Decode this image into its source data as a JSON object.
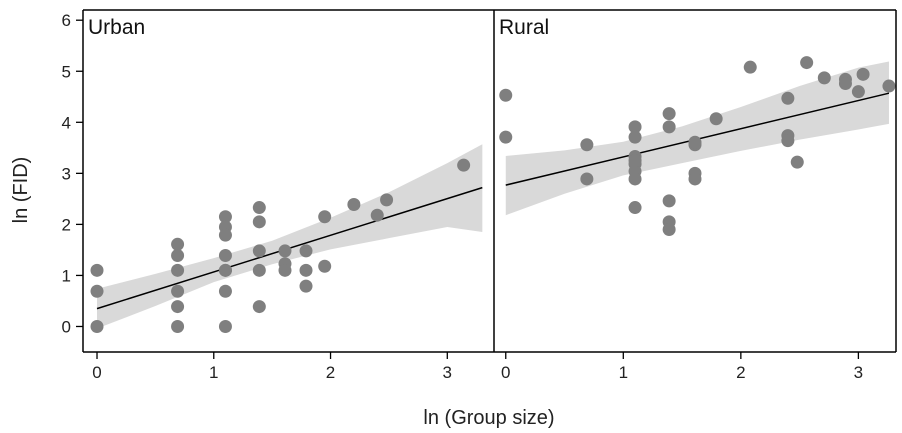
{
  "chart_data": {
    "type": "scatter",
    "xlabel": "ln (Group size)",
    "ylabel": "ln (FID)",
    "ylim": [
      -0.5,
      6.2
    ],
    "yticks": [
      0,
      1,
      2,
      3,
      4,
      5,
      6
    ],
    "grid": false,
    "colors": {
      "points": "#7f7f7f",
      "band": "#d9d9d9",
      "line": "#000000",
      "axis": "#000000"
    },
    "panels": [
      {
        "title": "Urban",
        "xlim": [
          -0.12,
          3.4
        ],
        "xticks": [
          0,
          1,
          2,
          3
        ],
        "fit": {
          "x": [
            0,
            3.3
          ],
          "y": [
            0.35,
            2.72
          ]
        },
        "band": {
          "x": [
            0,
            0.5,
            1.0,
            1.5,
            2.0,
            2.5,
            3.0,
            3.3
          ],
          "upper": [
            0.74,
            1.03,
            1.34,
            1.68,
            2.13,
            2.63,
            3.2,
            3.57
          ],
          "lower": [
            -0.04,
            0.4,
            0.87,
            1.22,
            1.51,
            1.73,
            1.95,
            1.85
          ]
        },
        "points": {
          "x": [
            0,
            0,
            0,
            0.69,
            0.69,
            0.69,
            0.69,
            0.69,
            0.69,
            1.1,
            1.1,
            1.1,
            1.1,
            1.1,
            1.1,
            1.1,
            1.1,
            1.39,
            1.39,
            1.39,
            1.39,
            1.39,
            1.61,
            1.61,
            1.61,
            1.79,
            1.79,
            1.79,
            1.95,
            1.95,
            2.2,
            2.4,
            2.48,
            3.14
          ],
          "y": [
            1.1,
            0.69,
            0,
            1.61,
            1.39,
            1.1,
            0.69,
            0.39,
            0,
            2.15,
            1.95,
            1.79,
            1.39,
            1.1,
            0.69,
            0,
            1.1,
            2.33,
            2.05,
            1.48,
            1.1,
            0.39,
            1.48,
            1.23,
            1.1,
            1.48,
            1.1,
            0.79,
            2.15,
            1.18,
            2.39,
            2.18,
            2.48,
            3.16
          ]
        }
      },
      {
        "title": "Rural",
        "xlim": [
          -0.1,
          3.32
        ],
        "xticks": [
          0,
          1,
          2,
          3
        ],
        "fit": {
          "x": [
            0,
            3.26
          ],
          "y": [
            2.77,
            4.57
          ]
        },
        "band": {
          "x": [
            0,
            0.5,
            1.0,
            1.5,
            2.0,
            2.5,
            3.0,
            3.26
          ],
          "upper": [
            3.34,
            3.45,
            3.62,
            3.92,
            4.3,
            4.71,
            5.07,
            5.19
          ],
          "lower": [
            2.18,
            2.6,
            2.96,
            3.2,
            3.44,
            3.66,
            3.86,
            3.97
          ]
        },
        "points": {
          "x": [
            0,
            0,
            0.69,
            0.69,
            1.1,
            1.1,
            1.1,
            1.1,
            1.1,
            1.1,
            1.1,
            1.1,
            1.39,
            1.39,
            1.39,
            1.39,
            1.39,
            1.61,
            1.61,
            1.61,
            1.61,
            1.79,
            2.08,
            2.4,
            2.4,
            2.4,
            2.48,
            2.56,
            2.71,
            2.89,
            2.89,
            3.0,
            3.04,
            3.26
          ],
          "y": [
            4.53,
            3.71,
            3.56,
            2.89,
            3.91,
            3.71,
            3.33,
            3.18,
            3.04,
            2.89,
            2.33,
            3.25,
            4.17,
            3.91,
            2.46,
            2.05,
            1.9,
            3.56,
            3.61,
            3.0,
            2.89,
            4.07,
            5.08,
            4.47,
            3.74,
            3.64,
            3.22,
            5.17,
            4.87,
            4.84,
            4.76,
            4.6,
            4.94,
            4.71
          ]
        }
      }
    ]
  }
}
